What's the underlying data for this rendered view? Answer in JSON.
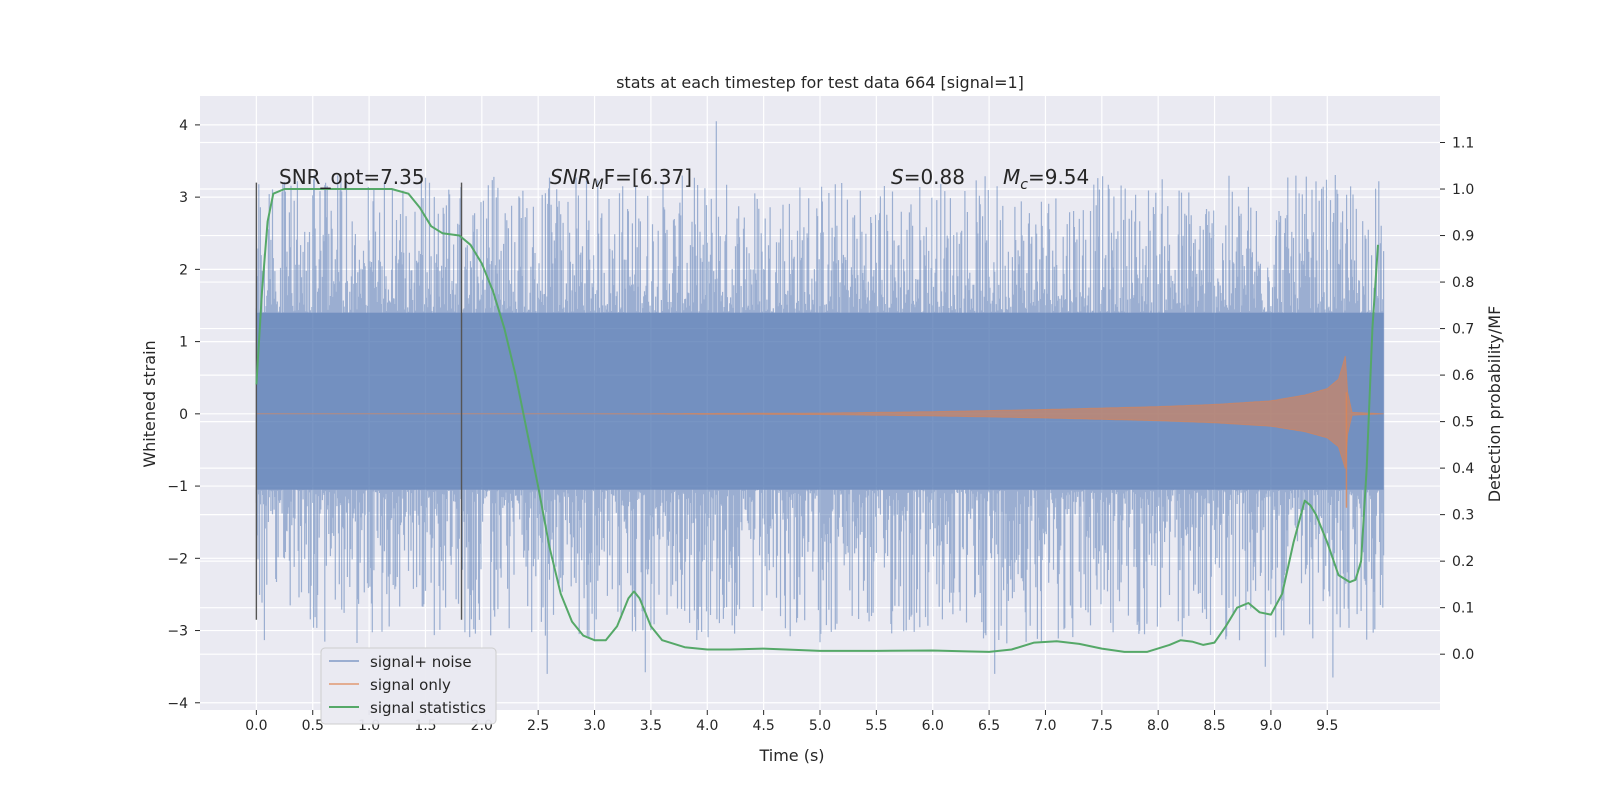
{
  "chart_data": {
    "type": "line",
    "title": "stats at each timestep for test data 664 [signal=1]",
    "xlabel": "Time (s)",
    "ylabel": "Whitened strain",
    "ylabel_right": "Detection probability/MF",
    "xlim": [
      -0.5,
      10.5
    ],
    "ylim": [
      -4.1,
      4.4
    ],
    "ylim_right": [
      -0.12,
      1.2
    ],
    "x_ticks": [
      "0.0",
      "0.5",
      "1.0",
      "1.5",
      "2.0",
      "2.5",
      "3.0",
      "3.5",
      "4.0",
      "4.5",
      "5.0",
      "5.5",
      "6.0",
      "6.5",
      "7.0",
      "7.5",
      "8.0",
      "8.5",
      "9.0",
      "9.5"
    ],
    "y_ticks": [
      "4",
      "3",
      "2",
      "1",
      "0",
      "−1",
      "−2",
      "−3",
      "−4"
    ],
    "y_right_ticks": [
      "1.1",
      "1.0",
      "0.9",
      "0.8",
      "0.7",
      "0.6",
      "0.5",
      "0.4",
      "0.3",
      "0.2",
      "0.1",
      "0.0"
    ],
    "grid": true,
    "legend": {
      "placement": "lower-left",
      "entries": [
        {
          "name": "signal+ noise",
          "color": "#4c72b0"
        },
        {
          "name": "signal only",
          "color": "#dd8452"
        },
        {
          "name": "signal statistics",
          "color": "#55a868"
        }
      ]
    },
    "annotations": {
      "snr_opt": "SNR_opt=7.35",
      "snr_mf_main": "SNR",
      "snr_mf_sub": "M",
      "snr_mf_rest": "F=[6.37]",
      "s_main": "S",
      "s_rest": "=0.88",
      "mc_main": "M",
      "mc_sub": "c",
      "mc_rest": "=9.54"
    },
    "vertical_markers_x": [
      0.0,
      1.82
    ],
    "vertical_markers_yrange": [
      -2.85,
      3.2
    ],
    "series": [
      {
        "name": "signal+ noise",
        "axis": "left",
        "x_range": [
          0.0,
          10.0
        ],
        "band": [
          -1.05,
          1.4
        ],
        "peak_max": 4.05,
        "peak_min": -3.65
      },
      {
        "name": "signal only",
        "axis": "left",
        "x_range": [
          0.0,
          10.0
        ],
        "envelope": {
          "x": [
            0.0,
            3.0,
            5.0,
            6.0,
            7.0,
            8.0,
            8.5,
            9.0,
            9.3,
            9.5,
            9.6,
            9.66,
            9.68,
            9.72,
            10.0
          ],
          "amp": [
            0.0,
            0.0,
            0.01,
            0.03,
            0.06,
            0.1,
            0.13,
            0.18,
            0.26,
            0.35,
            0.48,
            0.8,
            0.3,
            0.02,
            0.0
          ]
        }
      },
      {
        "name": "signal statistics",
        "axis": "right",
        "x": [
          0.0,
          0.05,
          0.1,
          0.15,
          0.25,
          0.5,
          0.8,
          1.0,
          1.2,
          1.35,
          1.45,
          1.55,
          1.65,
          1.8,
          1.9,
          2.0,
          2.1,
          2.2,
          2.3,
          2.4,
          2.5,
          2.6,
          2.7,
          2.8,
          2.9,
          3.0,
          3.1,
          3.2,
          3.3,
          3.35,
          3.4,
          3.5,
          3.6,
          3.8,
          4.0,
          4.2,
          4.5,
          4.7,
          5.0,
          5.5,
          6.0,
          6.3,
          6.5,
          6.7,
          6.9,
          7.1,
          7.3,
          7.5,
          7.7,
          7.9,
          8.1,
          8.2,
          8.3,
          8.4,
          8.5,
          8.6,
          8.7,
          8.8,
          8.9,
          9.0,
          9.1,
          9.2,
          9.3,
          9.35,
          9.4,
          9.5,
          9.6,
          9.7,
          9.75,
          9.8,
          9.85,
          9.9,
          9.95
        ],
        "values": [
          0.58,
          0.78,
          0.93,
          0.99,
          1.0,
          1.0,
          1.0,
          1.0,
          1.0,
          0.99,
          0.96,
          0.92,
          0.905,
          0.9,
          0.88,
          0.84,
          0.78,
          0.7,
          0.6,
          0.48,
          0.36,
          0.23,
          0.13,
          0.07,
          0.04,
          0.03,
          0.03,
          0.06,
          0.12,
          0.135,
          0.12,
          0.06,
          0.03,
          0.015,
          0.01,
          0.01,
          0.012,
          0.01,
          0.007,
          0.007,
          0.008,
          0.006,
          0.005,
          0.01,
          0.025,
          0.028,
          0.022,
          0.012,
          0.005,
          0.005,
          0.02,
          0.03,
          0.027,
          0.02,
          0.025,
          0.06,
          0.1,
          0.11,
          0.09,
          0.085,
          0.13,
          0.24,
          0.33,
          0.32,
          0.3,
          0.24,
          0.17,
          0.155,
          0.16,
          0.2,
          0.4,
          0.7,
          0.88
        ]
      }
    ]
  }
}
